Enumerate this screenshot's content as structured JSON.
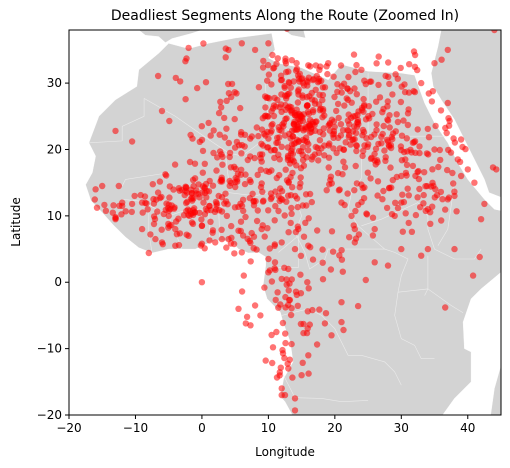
{
  "chart_data": {
    "type": "scatter",
    "title": "Deadliest Segments Along the Route (Zoomed In)",
    "xlabel": "Longitude",
    "ylabel": "Latitude",
    "xlim": [
      -20,
      45
    ],
    "ylim": [
      -20,
      38
    ],
    "xticks": [
      -20,
      -10,
      0,
      10,
      20,
      30,
      40
    ],
    "yticks": [
      -20,
      -10,
      0,
      10,
      20,
      30
    ],
    "grid": false,
    "basemap": "Africa land silhouette (light gray)",
    "colors": {
      "points": "#ff0000",
      "land": "#d3d3d3",
      "background": "#ffffff"
    },
    "clusters": [
      {
        "lon": 13.5,
        "lat": 25,
        "spread": [
          2.5,
          4.5
        ],
        "n": 150
      },
      {
        "lon": 15,
        "lat": 22,
        "spread": [
          3,
          3
        ],
        "n": 70
      },
      {
        "lon": 23,
        "lat": 24,
        "spread": [
          3,
          2.5
        ],
        "n": 80
      },
      {
        "lon": 29,
        "lat": 21,
        "spread": [
          4,
          3
        ],
        "n": 70
      },
      {
        "lon": 19,
        "lat": 30,
        "spread": [
          5,
          2
        ],
        "n": 50
      },
      {
        "lon": 31,
        "lat": 30,
        "spread": [
          3,
          2.5
        ],
        "n": 25
      },
      {
        "lon": 0,
        "lat": 12,
        "spread": [
          3.5,
          2.5
        ],
        "n": 90
      },
      {
        "lon": -6,
        "lat": 11,
        "spread": [
          3.5,
          3
        ],
        "n": 50
      },
      {
        "lon": 6,
        "lat": 14,
        "spread": [
          3,
          3
        ],
        "n": 30
      },
      {
        "lon": 3,
        "lat": 21,
        "spread": [
          3,
          3
        ],
        "n": 35
      },
      {
        "lon": 9,
        "lat": 18,
        "spread": [
          3,
          4
        ],
        "n": 45
      },
      {
        "lon": 14,
        "lat": 12,
        "spread": [
          2.5,
          4
        ],
        "n": 40
      },
      {
        "lon": 24,
        "lat": 13,
        "spread": [
          3,
          3
        ],
        "n": 30
      },
      {
        "lon": 33,
        "lat": 14,
        "spread": [
          3,
          3
        ],
        "n": 50
      },
      {
        "lon": 37,
        "lat": 20,
        "spread": [
          2,
          3
        ],
        "n": 20
      },
      {
        "lon": 14,
        "lat": -2,
        "spread": [
          2.5,
          4
        ],
        "n": 40
      },
      {
        "lon": 13,
        "lat": -8,
        "spread": [
          2,
          3
        ],
        "n": 15
      },
      {
        "lon": 14,
        "lat": -14,
        "spread": [
          1.5,
          3
        ],
        "n": 8
      },
      {
        "lon": 7,
        "lat": 6,
        "spread": [
          2,
          3
        ],
        "n": 20
      },
      {
        "lon": -3,
        "lat": 30,
        "spread": [
          3,
          3
        ],
        "n": 10
      },
      {
        "lon": 8,
        "lat": 31,
        "spread": [
          3,
          3
        ],
        "n": 12
      },
      {
        "lon": 21,
        "lat": 2,
        "spread": [
          2,
          5
        ],
        "n": 10
      },
      {
        "lon": -13,
        "lat": 13,
        "spread": [
          2,
          3
        ],
        "n": 10
      }
    ],
    "points": [
      [
        -13,
        22.8
      ],
      [
        -10.5,
        21.2
      ],
      [
        -8,
        4.4
      ],
      [
        -4,
        5.5
      ],
      [
        -6,
        25.8
      ],
      [
        -2,
        35.3
      ],
      [
        6,
        36
      ],
      [
        8,
        35
      ],
      [
        10,
        36
      ],
      [
        19,
        33
      ],
      [
        24,
        32
      ],
      [
        33,
        30
      ],
      [
        37,
        35
      ],
      [
        44,
        38
      ],
      [
        34,
        39
      ],
      [
        12.8,
        38.2
      ],
      [
        0,
        5.8
      ],
      [
        1,
        24
      ],
      [
        4,
        35
      ],
      [
        35,
        33
      ],
      [
        37,
        27
      ],
      [
        39,
        21.5
      ],
      [
        40,
        17
      ],
      [
        41,
        15
      ],
      [
        43.8,
        17.3
      ],
      [
        44.3,
        17
      ],
      [
        42.5,
        11.8
      ],
      [
        42,
        9.5
      ],
      [
        40.8,
        1
      ],
      [
        41.8,
        3.8
      ],
      [
        38,
        5
      ],
      [
        36.6,
        -3.8
      ],
      [
        34,
        5
      ],
      [
        33,
        4
      ],
      [
        30,
        5
      ],
      [
        28,
        2.5
      ],
      [
        26,
        3
      ],
      [
        23,
        6
      ],
      [
        21,
        -3
      ],
      [
        21,
        -6
      ],
      [
        21.3,
        -7.2
      ],
      [
        18.5,
        -6.2
      ],
      [
        19.5,
        -8
      ],
      [
        23.5,
        -3.6
      ],
      [
        26,
        8
      ],
      [
        29,
        10
      ],
      [
        22.5,
        10
      ],
      [
        21,
        12
      ],
      [
        12,
        -16
      ],
      [
        12.5,
        -17
      ],
      [
        15,
        -14
      ],
      [
        14,
        -19.3
      ],
      [
        14,
        -17.5
      ],
      [
        12,
        -17
      ],
      [
        16,
        -11
      ],
      [
        13,
        -13
      ],
      [
        10.7,
        -9.8
      ],
      [
        11.2,
        -7.5
      ],
      [
        12.2,
        -10.7
      ],
      [
        9.6,
        -11.8
      ],
      [
        8,
        -3.5
      ],
      [
        6.6,
        -6.2
      ],
      [
        6.8,
        -5.2
      ],
      [
        8.8,
        -5
      ],
      [
        9.4,
        -0.8
      ],
      [
        10,
        1.5
      ],
      [
        6,
        4.5
      ],
      [
        6.3,
        1
      ],
      [
        5.5,
        -4
      ],
      [
        3,
        6.5
      ],
      [
        0,
        0
      ],
      [
        0,
        8.5
      ],
      [
        -1.5,
        9
      ],
      [
        -9,
        8
      ],
      [
        -13,
        9.8
      ],
      [
        -16,
        14
      ],
      [
        -15,
        14.5
      ],
      [
        -12.5,
        14.5
      ],
      [
        -12,
        12
      ],
      [
        -13,
        9.5
      ],
      [
        -9,
        12
      ],
      [
        -12,
        11.5
      ],
      [
        -10.5,
        11.8
      ],
      [
        -5,
        10
      ],
      [
        -4,
        8
      ],
      [
        -6,
        6
      ],
      [
        -7,
        6.5
      ],
      [
        -2,
        7
      ],
      [
        2,
        6
      ],
      [
        4,
        6.5
      ],
      [
        31.6,
        7.6
      ],
      [
        30,
        12
      ],
      [
        23,
        8
      ],
      [
        34,
        11
      ],
      [
        36,
        9.3
      ],
      [
        38,
        13
      ],
      [
        37,
        12.5
      ],
      [
        39,
        16
      ],
      [
        38.5,
        18.5
      ],
      [
        35,
        20
      ],
      [
        30,
        16
      ],
      [
        9,
        8
      ],
      [
        12,
        6
      ],
      [
        14.5,
        8
      ],
      [
        14,
        5
      ],
      [
        16,
        5.5
      ],
      [
        11,
        3
      ],
      [
        12,
        0.5
      ],
      [
        10,
        3.5
      ],
      [
        13,
        2
      ]
    ]
  }
}
